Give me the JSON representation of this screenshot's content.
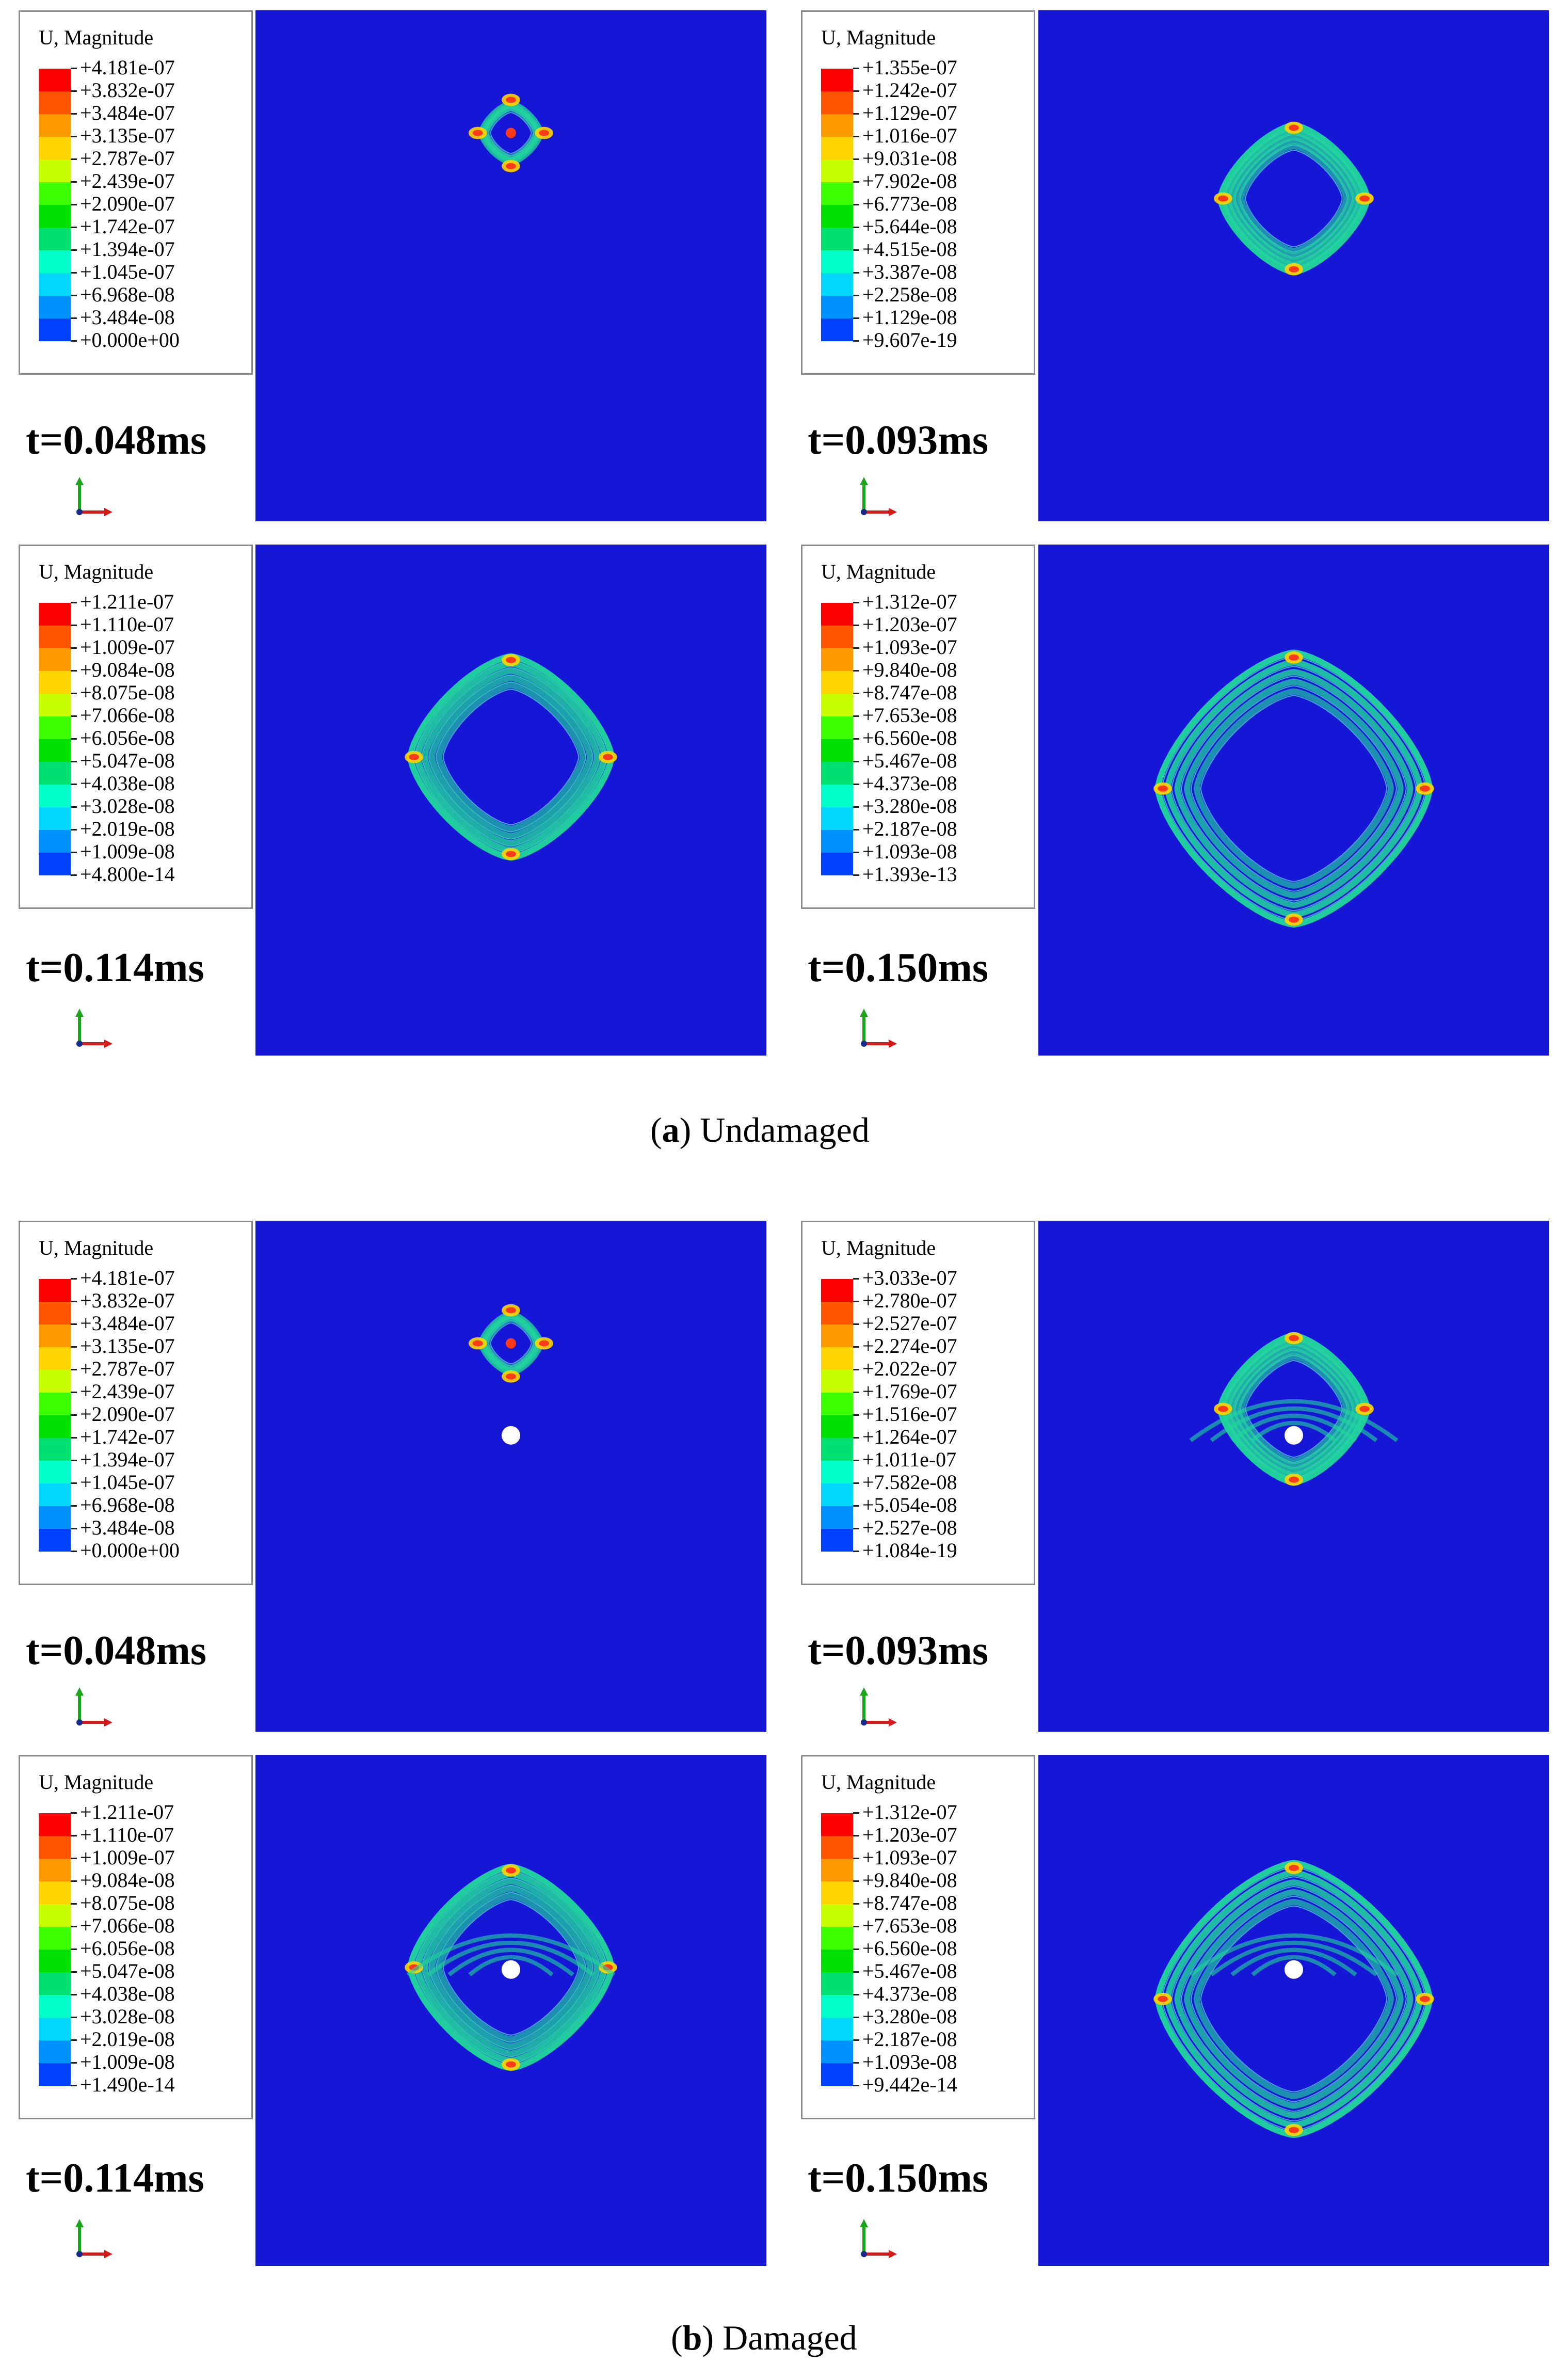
{
  "legend_colors": [
    "#ff0000",
    "#ff5500",
    "#ff9900",
    "#ffd400",
    "#c8ff00",
    "#3cff00",
    "#00e000",
    "#00e070",
    "#00ffc8",
    "#00d7ff",
    "#0090ff",
    "#0040ff",
    "#0000ff"
  ],
  "colors": {
    "plot_background": "#1616d6",
    "wave_band": "#21d79b",
    "wave_peak": "#ff3a1a",
    "hole": "#ffffff",
    "axis_y": "#1aa51a",
    "axis_x": "#d21a1a"
  },
  "icons": {
    "axis_triad": "xy-axis-triad-icon",
    "hole": "circular-damage-hole"
  },
  "sections": [
    {
      "id": "a",
      "caption_letter": "a",
      "caption_text": " Undamaged",
      "caption_full": "(a) Undamaged",
      "panels": [
        {
          "time": "t=0.048ms",
          "legend_title": "U, Magnitude",
          "ring_scale": 0.12,
          "damaged": false,
          "legend_values": [
            "+4.181e-07",
            "+3.832e-07",
            "+3.484e-07",
            "+3.135e-07",
            "+2.787e-07",
            "+2.439e-07",
            "+2.090e-07",
            "+1.742e-07",
            "+1.394e-07",
            "+1.045e-07",
            "+6.968e-08",
            "+3.484e-08",
            "+0.000e+00"
          ]
        },
        {
          "time": "t=0.093ms",
          "legend_title": "U, Magnitude",
          "ring_scale": 0.27,
          "damaged": false,
          "legend_values": [
            "+1.355e-07",
            "+1.242e-07",
            "+1.129e-07",
            "+1.016e-07",
            "+9.031e-08",
            "+7.902e-08",
            "+6.773e-08",
            "+5.644e-08",
            "+4.515e-08",
            "+3.387e-08",
            "+2.258e-08",
            "+1.129e-08",
            "+9.607e-19"
          ]
        },
        {
          "time": "t=0.114ms",
          "legend_title": "U, Magnitude",
          "ring_scale": 0.37,
          "damaged": false,
          "legend_values": [
            "+1.211e-07",
            "+1.110e-07",
            "+1.009e-07",
            "+9.084e-08",
            "+8.075e-08",
            "+7.066e-08",
            "+6.056e-08",
            "+5.047e-08",
            "+4.038e-08",
            "+3.028e-08",
            "+2.019e-08",
            "+1.009e-08",
            "+4.800e-14"
          ]
        },
        {
          "time": "t=0.150ms",
          "legend_title": "U, Magnitude",
          "ring_scale": 0.5,
          "damaged": false,
          "legend_values": [
            "+1.312e-07",
            "+1.203e-07",
            "+1.093e-07",
            "+9.840e-08",
            "+8.747e-08",
            "+7.653e-08",
            "+6.560e-08",
            "+5.467e-08",
            "+4.373e-08",
            "+3.280e-08",
            "+2.187e-08",
            "+1.093e-08",
            "+1.393e-13"
          ]
        }
      ]
    },
    {
      "id": "b",
      "caption_letter": "b",
      "caption_text": " Damaged",
      "caption_full": "(b) Damaged",
      "panels": [
        {
          "time": "t=0.048ms",
          "legend_title": "U, Magnitude",
          "ring_scale": 0.12,
          "damaged": true,
          "legend_values": [
            "+4.181e-07",
            "+3.832e-07",
            "+3.484e-07",
            "+3.135e-07",
            "+2.787e-07",
            "+2.439e-07",
            "+2.090e-07",
            "+1.742e-07",
            "+1.394e-07",
            "+1.045e-07",
            "+6.968e-08",
            "+3.484e-08",
            "+0.000e+00"
          ]
        },
        {
          "time": "t=0.093ms",
          "legend_title": "U, Magnitude",
          "ring_scale": 0.27,
          "damaged": true,
          "legend_values": [
            "+3.033e-07",
            "+2.780e-07",
            "+2.527e-07",
            "+2.274e-07",
            "+2.022e-07",
            "+1.769e-07",
            "+1.516e-07",
            "+1.264e-07",
            "+1.011e-07",
            "+7.582e-08",
            "+5.054e-08",
            "+2.527e-08",
            "+1.084e-19"
          ]
        },
        {
          "time": "t=0.114ms",
          "legend_title": "U, Magnitude",
          "ring_scale": 0.37,
          "damaged": true,
          "legend_values": [
            "+1.211e-07",
            "+1.110e-07",
            "+1.009e-07",
            "+9.084e-08",
            "+8.075e-08",
            "+7.066e-08",
            "+6.056e-08",
            "+5.047e-08",
            "+4.038e-08",
            "+3.028e-08",
            "+2.019e-08",
            "+1.009e-08",
            "+1.490e-14"
          ]
        },
        {
          "time": "t=0.150ms",
          "legend_title": "U, Magnitude",
          "ring_scale": 0.5,
          "damaged": true,
          "legend_values": [
            "+1.312e-07",
            "+1.203e-07",
            "+1.093e-07",
            "+9.840e-08",
            "+8.747e-08",
            "+7.653e-08",
            "+6.560e-08",
            "+5.467e-08",
            "+4.373e-08",
            "+3.280e-08",
            "+2.187e-08",
            "+1.093e-08",
            "+9.442e-14"
          ]
        }
      ]
    }
  ]
}
